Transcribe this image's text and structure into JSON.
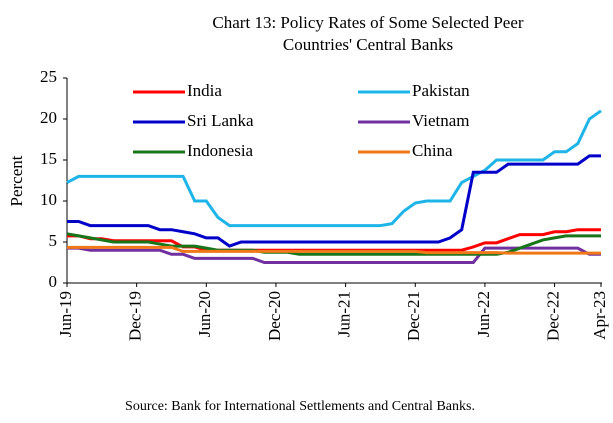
{
  "chart_data": {
    "type": "line",
    "title": [
      "Chart  13: Policy Rates of Some Selected Peer",
      "Countries' Central Banks"
    ],
    "y_label": "Percent",
    "source": "Source: Bank for International Settlements and  Central Banks.",
    "categories": [
      "Jun-19",
      null,
      null,
      null,
      null,
      null,
      "Dec-19",
      null,
      null,
      null,
      null,
      null,
      "Jun-20",
      null,
      null,
      null,
      null,
      null,
      "Dec-20",
      null,
      null,
      null,
      null,
      null,
      "Jun-21",
      null,
      null,
      null,
      null,
      null,
      "Dec-21",
      null,
      null,
      null,
      null,
      null,
      "Jun-22",
      null,
      null,
      null,
      null,
      null,
      "Dec-22",
      null,
      null,
      null,
      "Apr-23"
    ],
    "ylim": [
      0,
      25
    ],
    "yticks": [
      0,
      5,
      10,
      15,
      20,
      25
    ],
    "grid": false,
    "series": [
      {
        "name": "India",
        "color": "#ff0000",
        "values": [
          5.75,
          5.75,
          5.4,
          5.4,
          5.15,
          5.15,
          5.15,
          5.15,
          5.15,
          5.15,
          4.4,
          4.4,
          4,
          4,
          4,
          4,
          4,
          4,
          4,
          4,
          4,
          4,
          4,
          4,
          4,
          4,
          4,
          4,
          4,
          4,
          4,
          4,
          4,
          4,
          4,
          4.4,
          4.9,
          4.9,
          5.4,
          5.9,
          5.9,
          5.9,
          6.25,
          6.25,
          6.5,
          6.5,
          6.5
        ]
      },
      {
        "name": "Pakistan",
        "color": "#1fb4e8",
        "values": [
          12.25,
          13,
          13,
          13,
          13,
          13,
          13,
          13,
          13,
          13,
          13,
          10,
          10,
          8,
          7,
          7,
          7,
          7,
          7,
          7,
          7,
          7,
          7,
          7,
          7,
          7,
          7,
          7,
          7.25,
          8.75,
          9.75,
          10,
          10,
          10,
          12.25,
          13,
          13.75,
          15,
          15,
          15,
          15,
          15,
          16,
          16,
          17,
          20,
          21
        ]
      },
      {
        "name": "Sri Lanka",
        "color": "#0000c8",
        "values": [
          7.5,
          7.5,
          7,
          7,
          7,
          7,
          7,
          7,
          6.5,
          6.5,
          6.25,
          6,
          5.5,
          5.5,
          4.5,
          5,
          5,
          5,
          5,
          5,
          5,
          5,
          5,
          5,
          5,
          5,
          5,
          5,
          5,
          5,
          5,
          5,
          5,
          5.5,
          6.5,
          13.5,
          13.5,
          13.5,
          14.5,
          14.5,
          14.5,
          14.5,
          14.5,
          14.5,
          14.5,
          15.5,
          15.5
        ]
      },
      {
        "name": "Vietnam",
        "color": "#7030a0",
        "values": [
          4.25,
          4.25,
          4,
          4,
          4,
          4,
          4,
          4,
          4,
          3.5,
          3.5,
          3,
          3,
          3,
          3,
          3,
          3,
          2.5,
          2.5,
          2.5,
          2.5,
          2.5,
          2.5,
          2.5,
          2.5,
          2.5,
          2.5,
          2.5,
          2.5,
          2.5,
          2.5,
          2.5,
          2.5,
          2.5,
          2.5,
          2.5,
          4.25,
          4.25,
          4.25,
          4.25,
          4.25,
          4.25,
          4.25,
          4.25,
          4.25,
          3.5,
          3.5
        ]
      },
      {
        "name": "Indonesia",
        "color": "#17751a",
        "values": [
          6,
          5.75,
          5.5,
          5.25,
          5,
          5,
          5,
          5,
          4.75,
          4.5,
          4.5,
          4.5,
          4.25,
          4,
          4,
          4,
          4,
          3.75,
          3.75,
          3.75,
          3.5,
          3.5,
          3.5,
          3.5,
          3.5,
          3.5,
          3.5,
          3.5,
          3.5,
          3.5,
          3.5,
          3.5,
          3.5,
          3.5,
          3.5,
          3.5,
          3.5,
          3.5,
          3.75,
          4.25,
          4.75,
          5.25,
          5.5,
          5.75,
          5.75,
          5.75,
          5.75
        ]
      },
      {
        "name": "China",
        "color": "#f07818",
        "values": [
          4.35,
          4.35,
          4.35,
          4.35,
          4.35,
          4.35,
          4.35,
          4.35,
          4.35,
          4.35,
          3.85,
          3.85,
          3.85,
          3.85,
          3.85,
          3.85,
          3.85,
          3.85,
          3.85,
          3.85,
          3.85,
          3.85,
          3.85,
          3.85,
          3.85,
          3.85,
          3.85,
          3.85,
          3.85,
          3.85,
          3.85,
          3.7,
          3.7,
          3.7,
          3.7,
          3.7,
          3.7,
          3.7,
          3.65,
          3.65,
          3.65,
          3.65,
          3.65,
          3.65,
          3.65,
          3.65,
          3.65
        ]
      }
    ]
  }
}
